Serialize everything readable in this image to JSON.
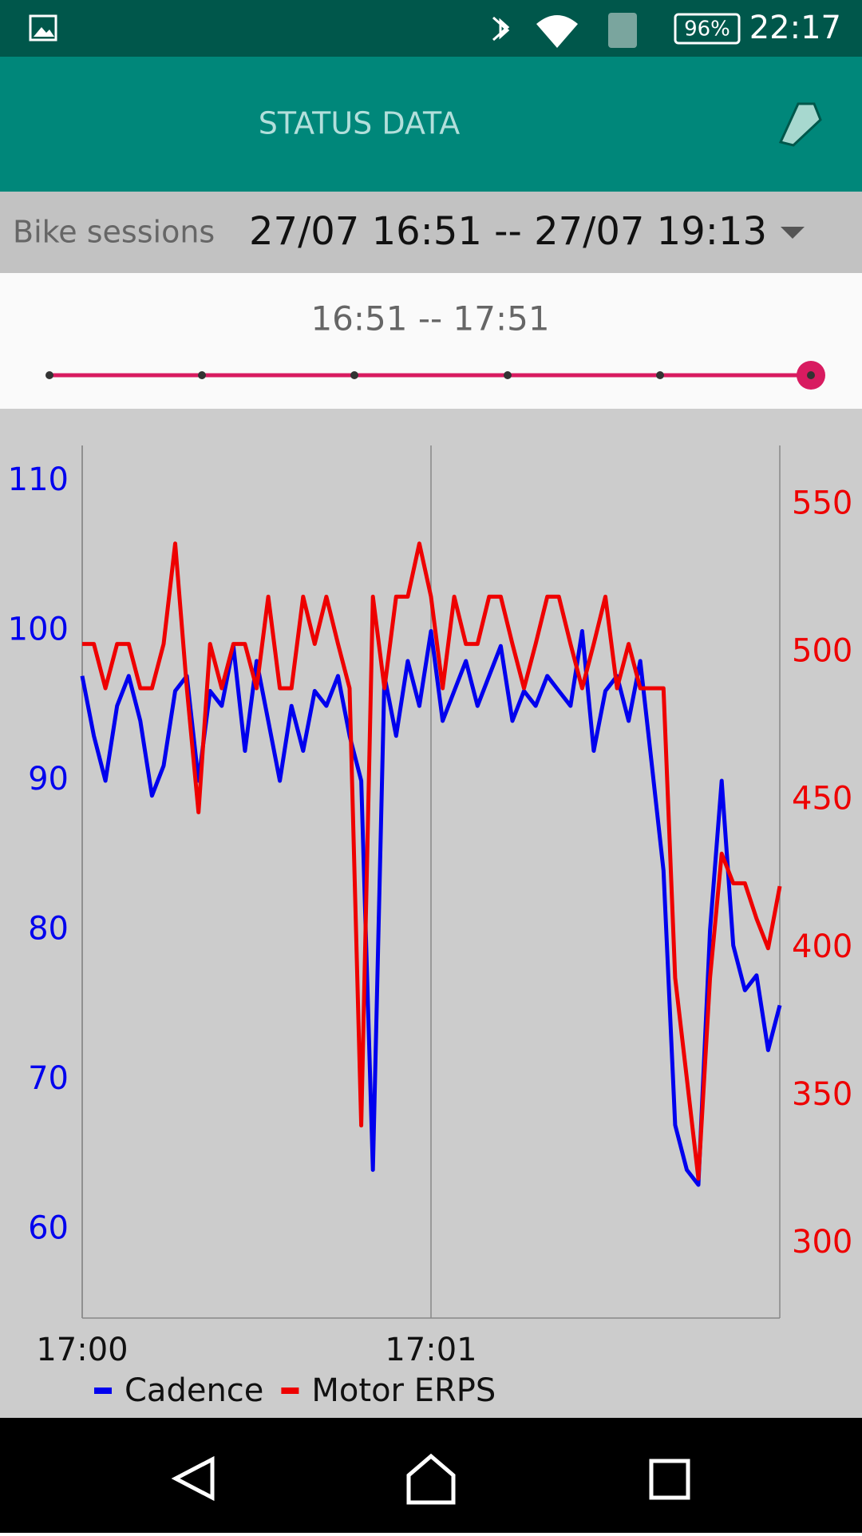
{
  "status_bar": {
    "battery": "96%",
    "time": "22:17"
  },
  "app_bar": {
    "title": "STATUS DATA"
  },
  "session": {
    "label": "Bike sessions",
    "value": "27/07 16:51 -- 27/07 19:13"
  },
  "range": {
    "text": "16:51  --  17:51"
  },
  "chart_data": {
    "type": "line",
    "x": [
      0,
      2,
      4,
      6,
      8,
      10,
      12,
      14,
      16,
      18,
      20,
      22,
      24,
      26,
      28,
      30,
      32,
      34,
      36,
      38,
      40,
      42,
      44,
      46,
      48,
      50,
      52,
      54,
      56,
      58,
      60,
      62,
      64,
      66,
      68,
      70,
      72,
      74,
      76,
      78,
      80,
      82,
      84,
      86,
      88,
      90,
      92,
      94,
      96,
      98,
      100,
      102,
      104,
      106,
      108,
      110,
      112,
      114,
      116,
      118,
      120
    ],
    "xlim": [
      0,
      120
    ],
    "xticks": [
      {
        "value": 0,
        "label": "17:00"
      },
      {
        "value": 60,
        "label": "17:01"
      }
    ],
    "ylim": [
      54.1,
      112.4
    ],
    "yticks": [
      60,
      70,
      80,
      90,
      100,
      110
    ],
    "y2lim": [
      274.8,
      570.2
    ],
    "y2ticks": [
      300,
      350,
      400,
      450,
      500,
      550
    ],
    "grid": "x",
    "series": [
      {
        "name": "Cadence",
        "color": "#0000ee",
        "axis": "y",
        "values": [
          97,
          93,
          90,
          95,
          97,
          94,
          89,
          91,
          96,
          97,
          90,
          96,
          95,
          99,
          92,
          98,
          94,
          90,
          95,
          92,
          96,
          95,
          97,
          93,
          90,
          64,
          97,
          93,
          98,
          95,
          100,
          94,
          96,
          98,
          95,
          97,
          99,
          94,
          96,
          95,
          97,
          96,
          95,
          100,
          92,
          96,
          97,
          94,
          98,
          91,
          84,
          67,
          64,
          63,
          80,
          90,
          79,
          76,
          77,
          72,
          75
        ]
      },
      {
        "name": "Motor ERPS",
        "color": "#ee0000",
        "axis": "y2",
        "values": [
          503,
          503,
          488,
          503,
          503,
          488,
          488,
          503,
          537,
          488,
          446,
          503,
          488,
          503,
          503,
          488,
          519,
          488,
          488,
          519,
          503,
          519,
          503,
          488,
          340,
          519,
          488,
          519,
          519,
          537,
          519,
          488,
          519,
          503,
          503,
          519,
          519,
          503,
          488,
          503,
          519,
          519,
          503,
          488,
          503,
          519,
          488,
          503,
          488,
          488,
          488,
          390,
          356,
          322,
          390,
          432,
          422,
          422,
          410,
          400,
          421
        ]
      }
    ]
  }
}
